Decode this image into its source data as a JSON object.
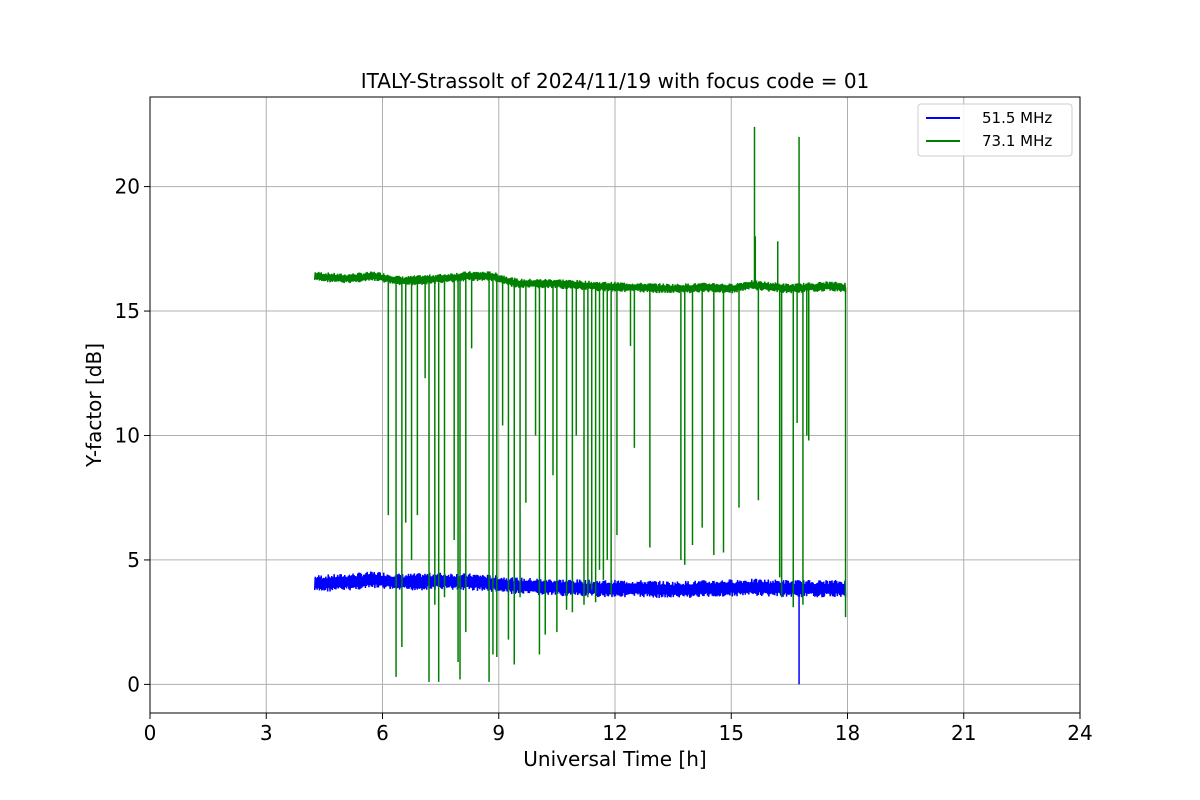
{
  "chart_data": {
    "type": "line",
    "title": "ITALY-Strassolt of 2024/11/19 with focus code = 01",
    "xlabel": "Universal Time [h]",
    "ylabel": "Y-factor [dB]",
    "xlim": [
      0,
      24
    ],
    "ylim": [
      -1.15,
      23.6
    ],
    "xticks": [
      0,
      3,
      6,
      9,
      12,
      15,
      18,
      21,
      24
    ],
    "yticks": [
      0,
      5,
      10,
      15,
      20
    ],
    "grid": true,
    "legend_position": "top-right",
    "series": [
      {
        "name": "51.5 MHz",
        "color": "#0000ff",
        "baseline": [
          [
            4.25,
            4.05
          ],
          [
            5.0,
            4.1
          ],
          [
            5.8,
            4.2
          ],
          [
            6.5,
            4.1
          ],
          [
            7.5,
            4.15
          ],
          [
            8.5,
            4.1
          ],
          [
            9.5,
            3.95
          ],
          [
            10.5,
            3.9
          ],
          [
            11.5,
            3.85
          ],
          [
            12.5,
            3.85
          ],
          [
            13.5,
            3.8
          ],
          [
            14.5,
            3.85
          ],
          [
            15.5,
            3.9
          ],
          [
            16.5,
            3.85
          ],
          [
            17.0,
            3.85
          ],
          [
            17.95,
            3.85
          ]
        ],
        "band_half_width": 0.35,
        "spikes": [
          [
            16.75,
            0.0
          ]
        ]
      },
      {
        "name": "73.1 MHz",
        "color": "#008000",
        "baseline": [
          [
            4.25,
            16.4
          ],
          [
            5.0,
            16.3
          ],
          [
            5.8,
            16.4
          ],
          [
            6.5,
            16.2
          ],
          [
            7.5,
            16.3
          ],
          [
            8.2,
            16.4
          ],
          [
            8.8,
            16.4
          ],
          [
            9.5,
            16.1
          ],
          [
            10.5,
            16.1
          ],
          [
            11.5,
            16.0
          ],
          [
            12.5,
            15.95
          ],
          [
            13.5,
            15.9
          ],
          [
            14.5,
            15.95
          ],
          [
            15.0,
            15.9
          ],
          [
            15.5,
            16.05
          ],
          [
            16.5,
            15.9
          ],
          [
            17.5,
            16.0
          ],
          [
            17.95,
            15.95
          ]
        ],
        "band_half_width": 0.2,
        "spikes": [
          [
            6.15,
            6.8
          ],
          [
            6.35,
            0.3
          ],
          [
            6.5,
            1.5
          ],
          [
            6.6,
            6.5
          ],
          [
            6.75,
            5.0
          ],
          [
            6.9,
            6.8
          ],
          [
            7.1,
            12.3
          ],
          [
            7.2,
            0.1
          ],
          [
            7.35,
            3.2
          ],
          [
            7.45,
            0.1
          ],
          [
            7.6,
            3.5
          ],
          [
            7.85,
            5.8
          ],
          [
            7.95,
            0.9
          ],
          [
            8.0,
            0.2
          ],
          [
            8.15,
            2.1
          ],
          [
            8.3,
            13.5
          ],
          [
            8.75,
            0.1
          ],
          [
            8.85,
            1.2
          ],
          [
            8.95,
            1.1
          ],
          [
            9.1,
            10.4
          ],
          [
            9.25,
            1.8
          ],
          [
            9.4,
            0.8
          ],
          [
            9.55,
            3.5
          ],
          [
            9.7,
            7.3
          ],
          [
            9.95,
            10.0
          ],
          [
            10.05,
            1.2
          ],
          [
            10.2,
            2.0
          ],
          [
            10.4,
            8.4
          ],
          [
            10.5,
            2.1
          ],
          [
            10.75,
            3.0
          ],
          [
            10.9,
            2.9
          ],
          [
            11.0,
            10.0
          ],
          [
            11.2,
            3.2
          ],
          [
            11.3,
            3.5
          ],
          [
            11.4,
            3.8
          ],
          [
            11.5,
            3.3
          ],
          [
            11.6,
            4.6
          ],
          [
            11.7,
            4.2
          ],
          [
            11.8,
            5.0
          ],
          [
            11.9,
            3.6
          ],
          [
            12.05,
            6.0
          ],
          [
            12.4,
            13.6
          ],
          [
            12.5,
            9.5
          ],
          [
            12.9,
            5.5
          ],
          [
            13.7,
            5.0
          ],
          [
            13.8,
            4.8
          ],
          [
            14.0,
            5.6
          ],
          [
            14.25,
            6.3
          ],
          [
            14.55,
            5.2
          ],
          [
            14.8,
            5.3
          ],
          [
            15.2,
            7.1
          ],
          [
            15.6,
            22.4
          ],
          [
            15.62,
            18.0
          ],
          [
            15.7,
            7.4
          ],
          [
            16.2,
            17.8
          ],
          [
            16.25,
            4.3
          ],
          [
            16.3,
            3.5
          ],
          [
            16.6,
            3.1
          ],
          [
            16.7,
            10.5
          ],
          [
            16.75,
            22.0
          ],
          [
            16.85,
            3.2
          ],
          [
            16.95,
            10.0
          ],
          [
            17.0,
            9.8
          ],
          [
            17.95,
            2.7
          ]
        ]
      }
    ]
  }
}
